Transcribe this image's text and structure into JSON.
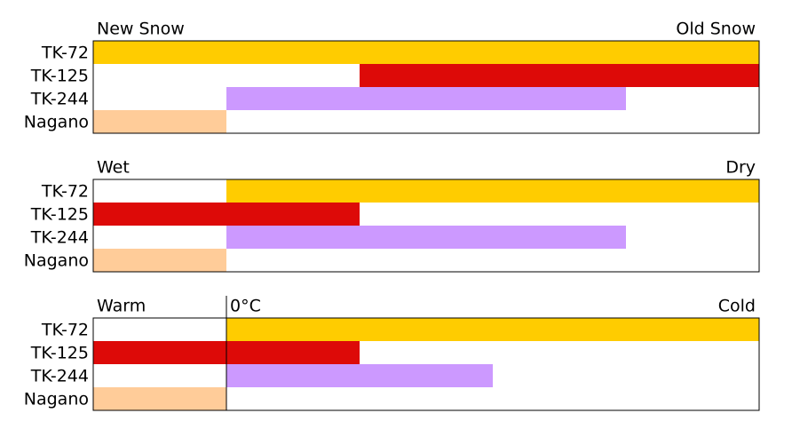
{
  "chart_data": [
    {
      "type": "range",
      "left_label": "New Snow",
      "right_label": "Old Snow",
      "categories": [
        "TK-72",
        "TK-125",
        "TK-244",
        "Nagano"
      ],
      "start": [
        0,
        2,
        1,
        0
      ],
      "end": [
        5,
        5,
        4,
        1
      ],
      "colors": [
        "#ffcc00",
        "#dd0a08",
        "#cc99ff",
        "#ffcc99"
      ],
      "xlim": [
        0,
        5
      ]
    },
    {
      "type": "range",
      "left_label": "Wet",
      "right_label": "Dry",
      "categories": [
        "TK-72",
        "TK-125",
        "TK-244",
        "Nagano"
      ],
      "start": [
        1,
        0,
        1,
        0
      ],
      "end": [
        5,
        2,
        4,
        1
      ],
      "colors": [
        "#ffcc00",
        "#dd0a08",
        "#cc99ff",
        "#ffcc99"
      ],
      "xlim": [
        0,
        5
      ]
    },
    {
      "type": "range",
      "left_label": "Warm",
      "right_label": "Cold",
      "categories": [
        "TK-72",
        "TK-125",
        "TK-244",
        "Nagano"
      ],
      "start": [
        1,
        0,
        1,
        0
      ],
      "end": [
        5,
        2,
        3,
        1
      ],
      "colors": [
        "#ffcc00",
        "#dd0a08",
        "#cc99ff",
        "#ffcc99"
      ],
      "xlim": [
        0,
        5
      ],
      "marker": {
        "value": 1,
        "label": "0°C"
      }
    }
  ]
}
